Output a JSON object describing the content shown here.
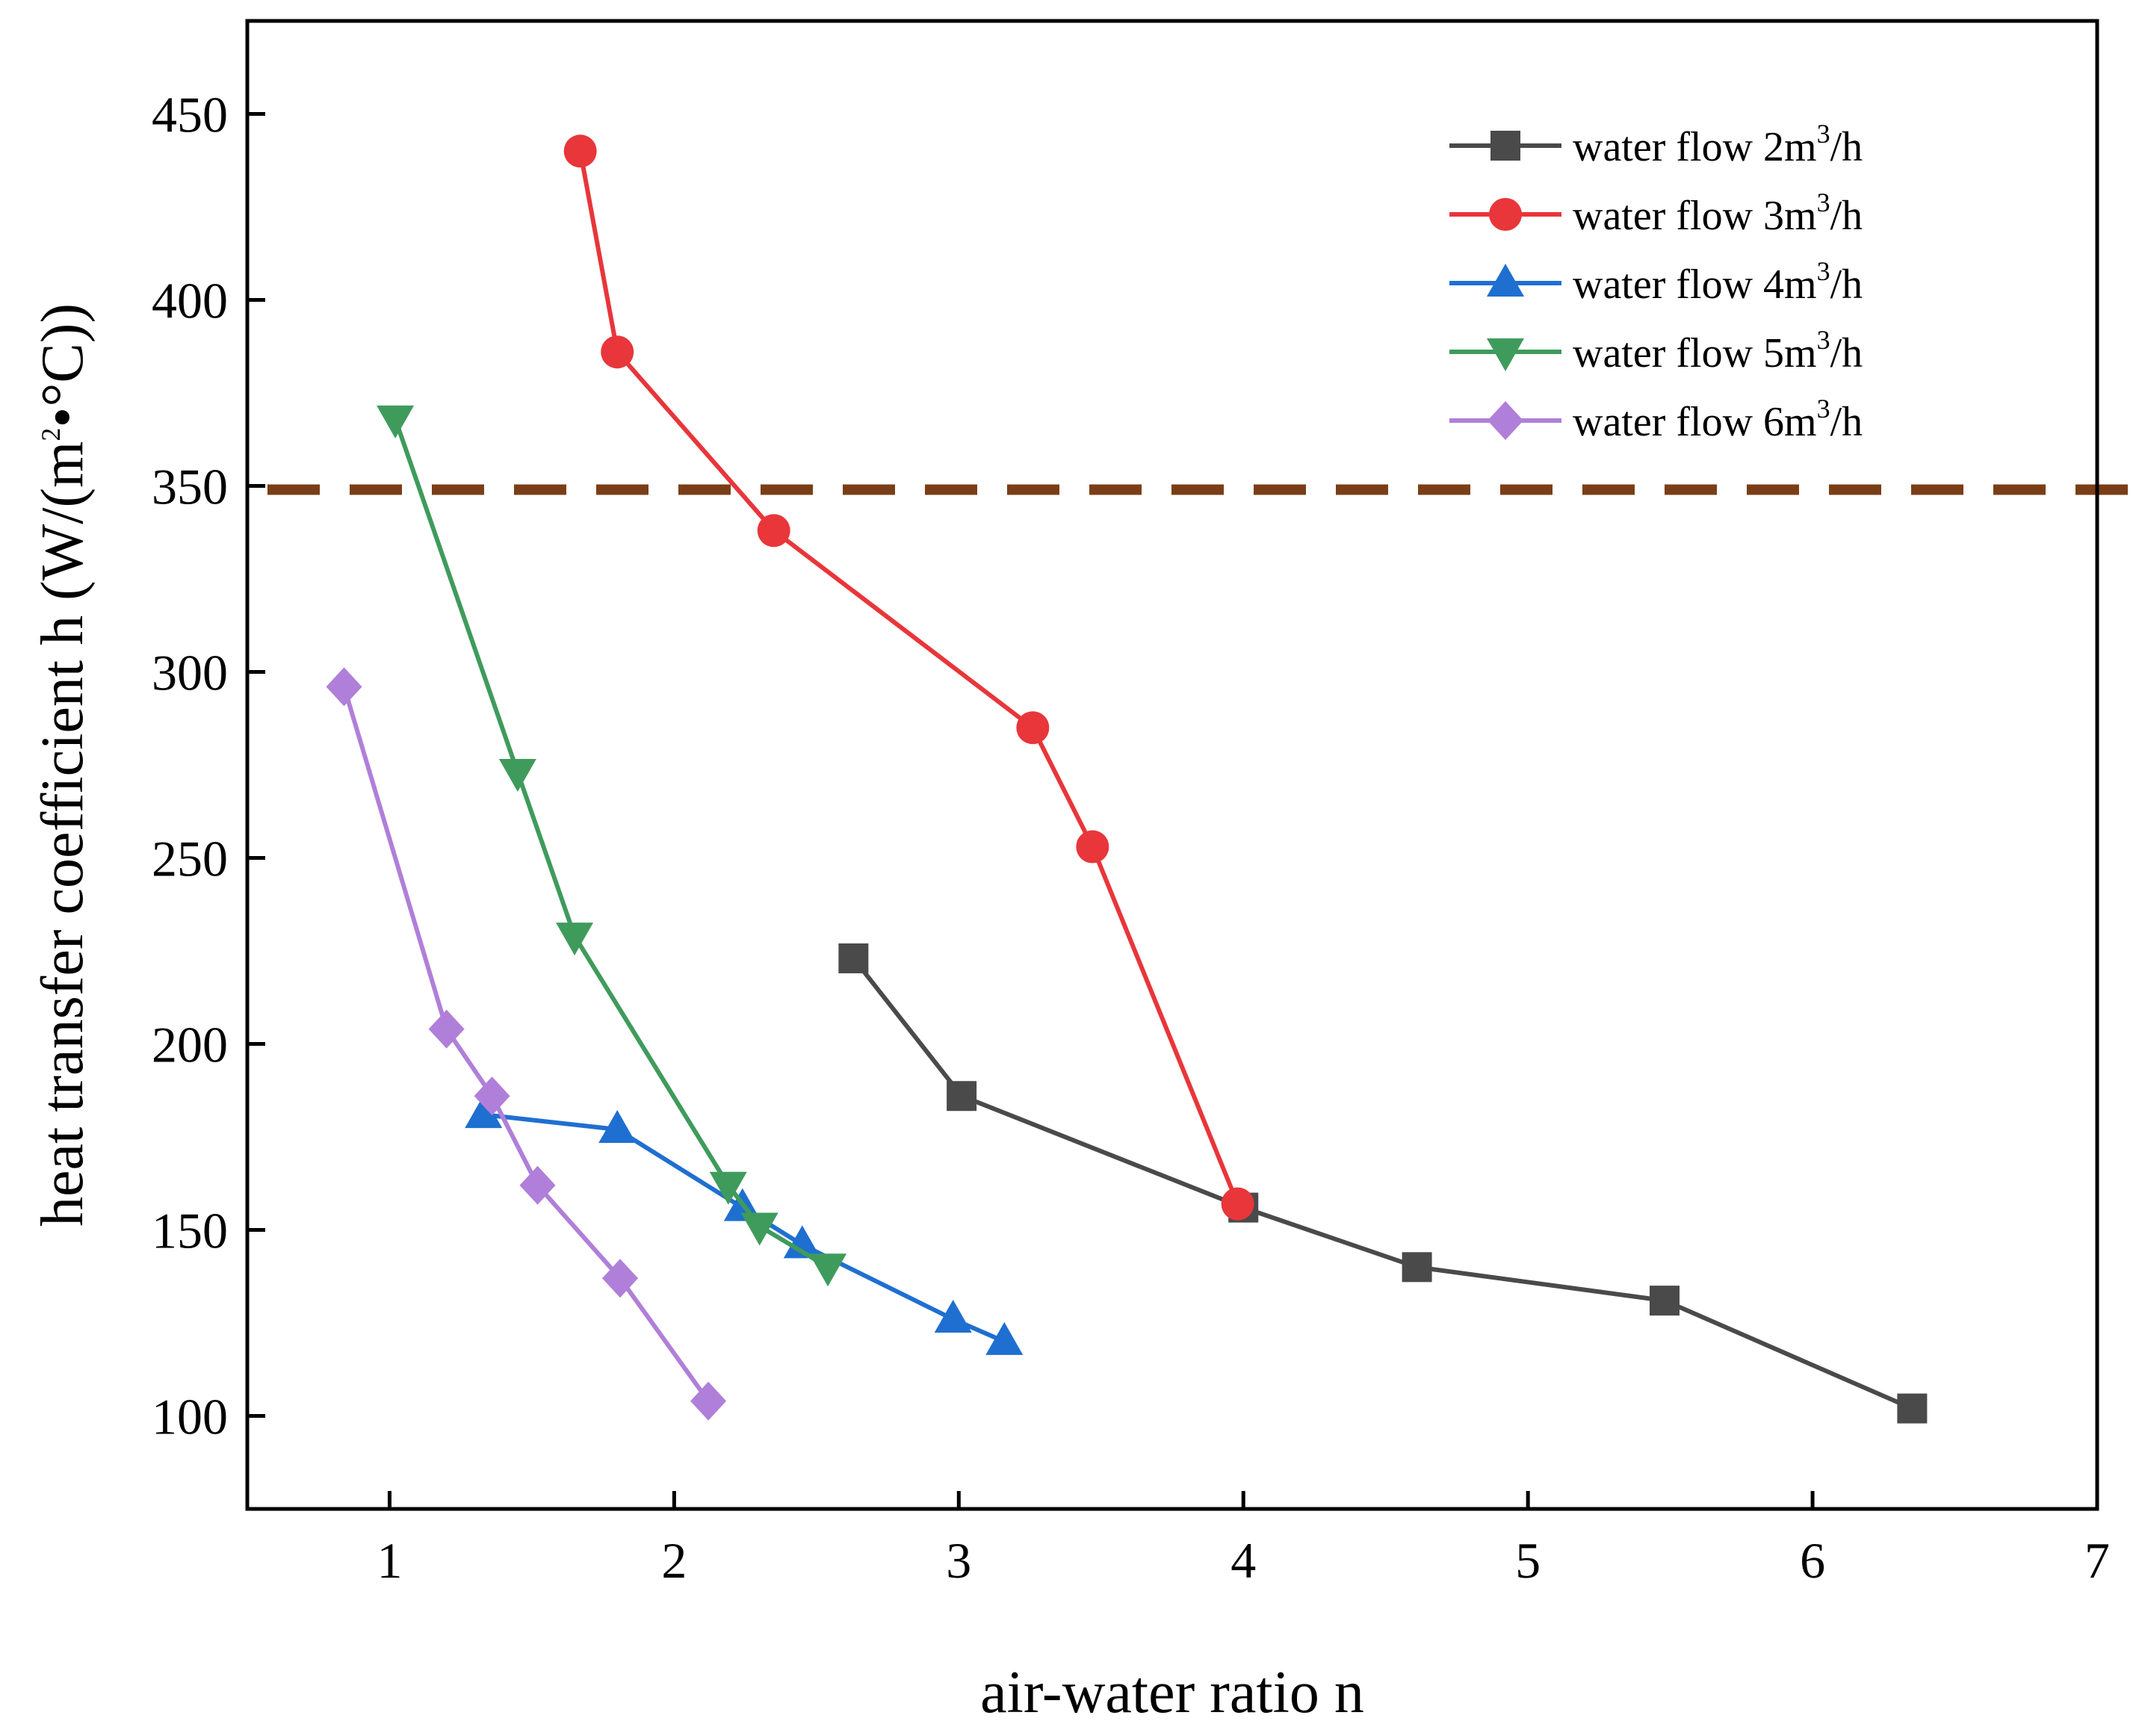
{
  "chart_data": {
    "type": "line",
    "title": "",
    "xlabel": "air-water ratio n",
    "ylabel": "heat transfer coefficient h (W/(m",
    "ylabel_sup": "2",
    "ylabel_tail": "•°C))",
    "xlim": [
      0.5,
      7
    ],
    "ylim": [
      75,
      475
    ],
    "xticks": [
      1,
      2,
      3,
      4,
      5,
      6,
      7
    ],
    "yticks": [
      100,
      150,
      200,
      250,
      300,
      350,
      400,
      450
    ],
    "reference_line": {
      "y": 349,
      "color": "#7a3e17",
      "style": "dashed"
    },
    "legend_position": "top-right",
    "legend_unit_tail": "/h",
    "series": [
      {
        "name": "water flow 2m",
        "sup": "3",
        "marker": "square",
        "color": "#4a4a4a",
        "x": [
          2.63,
          3.01,
          4.0,
          4.61,
          5.48,
          6.35
        ],
        "y": [
          223,
          186,
          156,
          140,
          131,
          102
        ]
      },
      {
        "name": "water flow 3m",
        "sup": "3",
        "marker": "circle",
        "color": "#e8363a",
        "x": [
          1.67,
          1.8,
          2.35,
          3.26,
          3.47,
          3.98
        ],
        "y": [
          440,
          386,
          338,
          285,
          253,
          157
        ]
      },
      {
        "name": "water flow 4m",
        "sup": "3",
        "marker": "triangle-up",
        "color": "#1f6fd1",
        "x": [
          1.33,
          1.8,
          2.24,
          2.45,
          2.98,
          3.16
        ],
        "y": [
          181,
          177,
          156,
          146,
          126,
          120
        ]
      },
      {
        "name": "water flow 5m",
        "sup": "3",
        "marker": "triangle-down",
        "color": "#3f9b5c",
        "x": [
          1.02,
          1.45,
          1.65,
          2.19,
          2.3,
          2.54
        ],
        "y": [
          368,
          273,
          229,
          162,
          151,
          140
        ]
      },
      {
        "name": "water flow 6m",
        "sup": "3",
        "marker": "diamond",
        "color": "#b07fd9",
        "x": [
          0.84,
          1.2,
          1.36,
          1.52,
          1.81,
          2.12
        ],
        "y": [
          296,
          204,
          186,
          162,
          137,
          104
        ]
      }
    ]
  }
}
